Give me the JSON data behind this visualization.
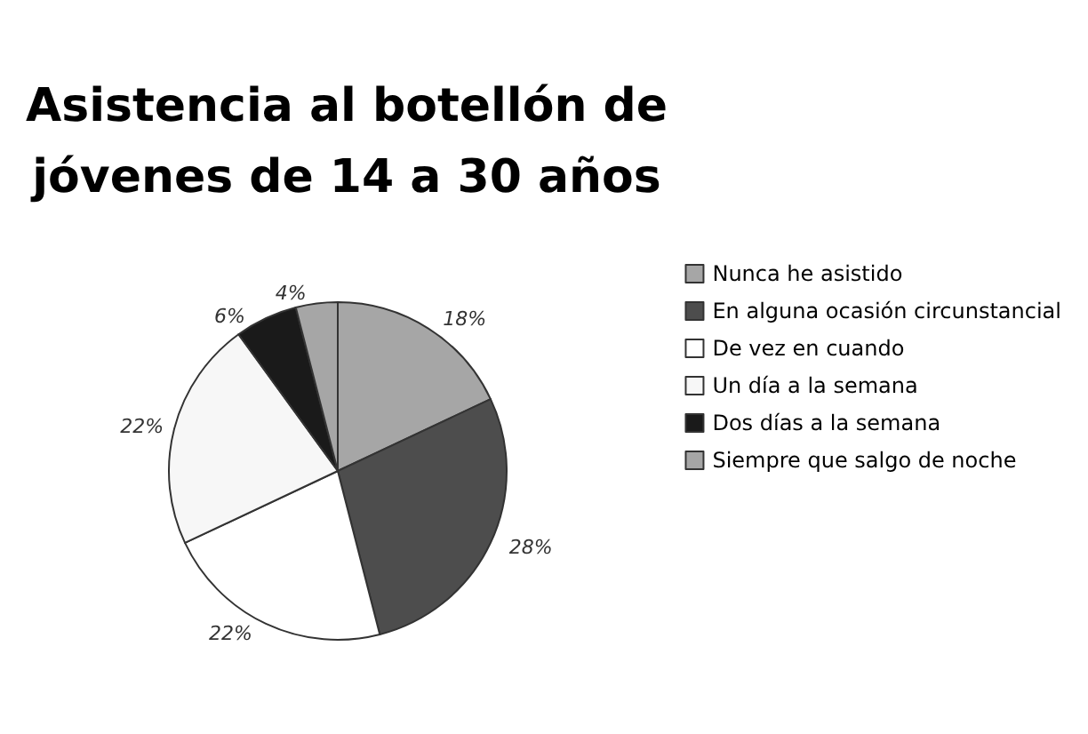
{
  "chart_data": {
    "type": "pie",
    "title": "Asistencia al botellón de\njóvenes de 14 a 30 años",
    "categories": [
      "Nunca he asistido",
      "En alguna ocasión circunstancial",
      "De vez en cuando",
      "Un día a la semana",
      "Dos días a la semana",
      "Siempre que salgo de noche"
    ],
    "values": [
      18,
      28,
      22,
      22,
      6,
      4
    ],
    "value_labels": [
      "18%",
      "28%",
      "22%",
      "22%",
      "6%",
      "4%"
    ],
    "colors": [
      "#a6a6a6",
      "#4d4d4d",
      "#ffffff",
      "#f7f7f7",
      "#1a1a1a",
      "#a6a6a6"
    ],
    "legend": "right"
  }
}
